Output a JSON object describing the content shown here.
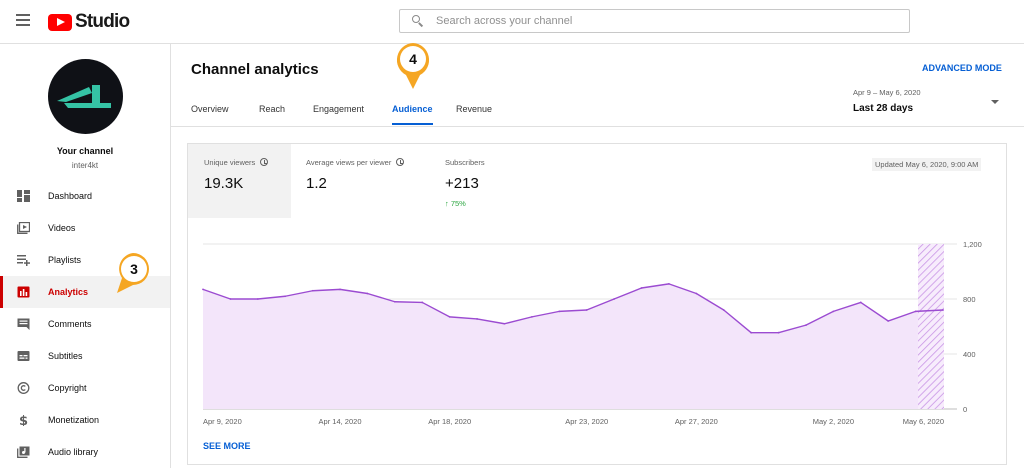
{
  "header": {
    "logo_text": "Studio",
    "search_placeholder": "Search across your channel"
  },
  "sidebar": {
    "channel_title": "Your channel",
    "channel_handle": "inter4kt",
    "items": [
      {
        "label": "Dashboard",
        "icon": "dashboard-icon"
      },
      {
        "label": "Videos",
        "icon": "videos-icon"
      },
      {
        "label": "Playlists",
        "icon": "playlists-icon"
      },
      {
        "label": "Analytics",
        "icon": "analytics-icon",
        "active": true
      },
      {
        "label": "Comments",
        "icon": "comments-icon"
      },
      {
        "label": "Subtitles",
        "icon": "subtitles-icon"
      },
      {
        "label": "Copyright",
        "icon": "copyright-icon"
      },
      {
        "label": "Monetization",
        "icon": "monetization-icon"
      },
      {
        "label": "Audio library",
        "icon": "audio-library-icon"
      }
    ]
  },
  "main": {
    "title": "Channel analytics",
    "advanced_mode": "ADVANCED MODE",
    "tabs": [
      {
        "label": "Overview"
      },
      {
        "label": "Reach"
      },
      {
        "label": "Engagement"
      },
      {
        "label": "Audience",
        "active": true
      },
      {
        "label": "Revenue"
      }
    ],
    "date_range": {
      "dates": "Apr 9 – May 6, 2020",
      "label": "Last 28 days"
    },
    "metrics": [
      {
        "label": "Unique viewers",
        "value": "19.3K",
        "selected": true,
        "info_icon": "clock-icon"
      },
      {
        "label": "Average views per viewer",
        "value": "1.2",
        "info_icon": "clock-icon"
      },
      {
        "label": "Subscribers",
        "value": "+213",
        "change": "75%",
        "change_direction": "up",
        "change_icon": "arrow-up-icon"
      }
    ],
    "updated": "Updated May 6, 2020, 9:00 AM",
    "see_more": "SEE MORE"
  },
  "callouts": [
    "3",
    "4"
  ],
  "colors": {
    "accent_blue": "#065fd4",
    "active_red": "#cc0000",
    "line_purple": "#9b4bd1",
    "area_fill": "#f3e5fa",
    "callout_orange": "#f5a623"
  },
  "chart_data": {
    "type": "area",
    "ylim": [
      0,
      1200
    ],
    "y_ticks": [
      "1,200",
      "800",
      "400",
      "0"
    ],
    "x_ticks": [
      "Apr 9, 2020",
      "Apr 14, 2020",
      "Apr 18, 2020",
      "Apr 23, 2020",
      "Apr 27, 2020",
      "May 2, 2020",
      "May 6, 2020"
    ],
    "x": [
      "Apr 9",
      "Apr 10",
      "Apr 11",
      "Apr 12",
      "Apr 13",
      "Apr 14",
      "Apr 15",
      "Apr 16",
      "Apr 17",
      "Apr 18",
      "Apr 19",
      "Apr 20",
      "Apr 21",
      "Apr 22",
      "Apr 23",
      "Apr 24",
      "Apr 25",
      "Apr 26",
      "Apr 27",
      "Apr 28",
      "Apr 29",
      "Apr 30",
      "May 1",
      "May 2",
      "May 3",
      "May 4",
      "May 5",
      "May 6"
    ],
    "series": [
      {
        "values": [
          870,
          800,
          800,
          820,
          860,
          870,
          840,
          780,
          775,
          670,
          655,
          620,
          670,
          710,
          720,
          800,
          880,
          910,
          840,
          720,
          555,
          555,
          610,
          710,
          775,
          640,
          710,
          720
        ]
      }
    ],
    "partial_last_period": true
  }
}
